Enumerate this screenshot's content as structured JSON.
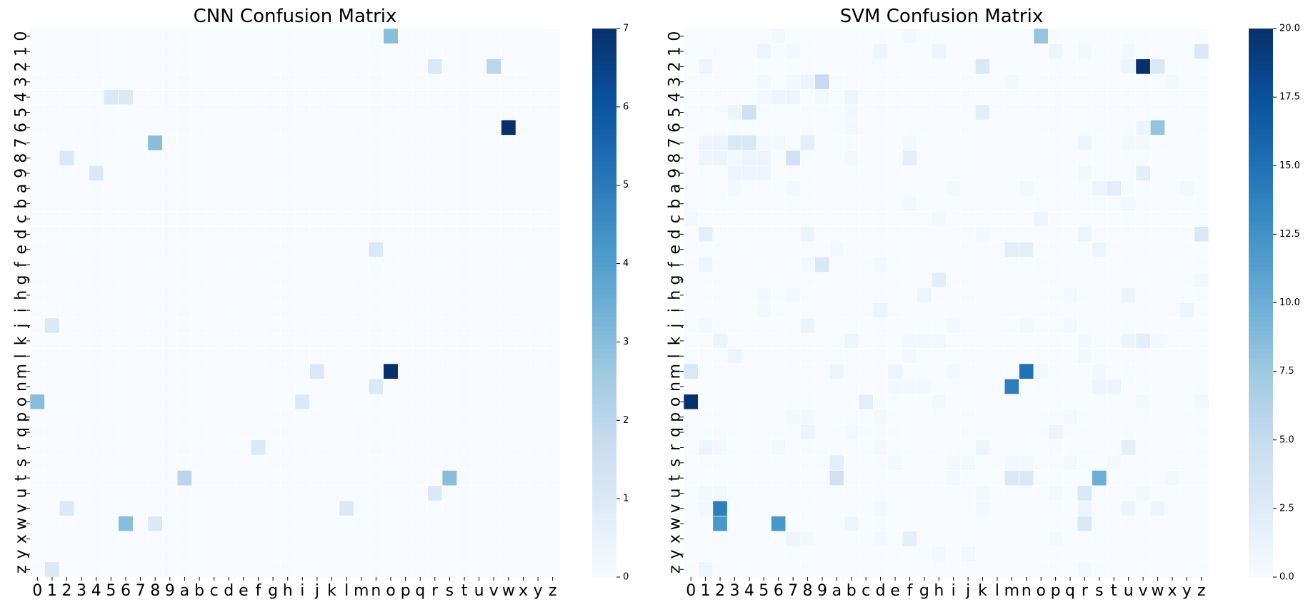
{
  "chart_data": [
    {
      "type": "heatmap",
      "title": "CNN Confusion Matrix",
      "labels": [
        "0",
        "1",
        "2",
        "3",
        "4",
        "5",
        "6",
        "7",
        "8",
        "9",
        "a",
        "b",
        "c",
        "d",
        "e",
        "f",
        "g",
        "h",
        "i",
        "j",
        "k",
        "l",
        "m",
        "n",
        "o",
        "p",
        "q",
        "r",
        "s",
        "t",
        "u",
        "v",
        "w",
        "x",
        "y",
        "z"
      ],
      "cells": [
        [
          0,
          24,
          3
        ],
        [
          2,
          27,
          1
        ],
        [
          2,
          31,
          2
        ],
        [
          4,
          5,
          1
        ],
        [
          4,
          6,
          1
        ],
        [
          6,
          32,
          7
        ],
        [
          7,
          8,
          3
        ],
        [
          8,
          2,
          1
        ],
        [
          9,
          4,
          1
        ],
        [
          14,
          23,
          1
        ],
        [
          19,
          1,
          1
        ],
        [
          22,
          19,
          1
        ],
        [
          22,
          24,
          7
        ],
        [
          23,
          23,
          1
        ],
        [
          24,
          0,
          3
        ],
        [
          24,
          18,
          1
        ],
        [
          27,
          15,
          1
        ],
        [
          29,
          10,
          2
        ],
        [
          29,
          28,
          3
        ],
        [
          30,
          27,
          1
        ],
        [
          31,
          2,
          1
        ],
        [
          31,
          21,
          1
        ],
        [
          32,
          6,
          3
        ],
        [
          32,
          8,
          1
        ],
        [
          35,
          1,
          1
        ]
      ],
      "colorbar": {
        "min": 0,
        "max": 7,
        "ticks": [
          "0",
          "1",
          "2",
          "3",
          "4",
          "5",
          "6",
          "7"
        ]
      },
      "colormap": [
        "#f7fbff",
        "#deebf7",
        "#c6dbef",
        "#9ecae1",
        "#6baed6",
        "#4292c6",
        "#2171b5",
        "#08519c",
        "#08306b"
      ]
    },
    {
      "type": "heatmap",
      "title": "SVM Confusion Matrix",
      "labels": [
        "0",
        "1",
        "2",
        "3",
        "4",
        "5",
        "6",
        "7",
        "8",
        "9",
        "a",
        "b",
        "c",
        "d",
        "e",
        "f",
        "g",
        "h",
        "i",
        "j",
        "k",
        "l",
        "m",
        "n",
        "o",
        "p",
        "q",
        "r",
        "s",
        "t",
        "u",
        "v",
        "w",
        "x",
        "y",
        "z"
      ],
      "cells": [
        [
          0,
          6,
          0.5
        ],
        [
          0,
          15,
          0.5
        ],
        [
          0,
          24,
          8
        ],
        [
          1,
          5,
          1
        ],
        [
          1,
          7,
          0.5
        ],
        [
          1,
          13,
          1
        ],
        [
          1,
          17,
          1
        ],
        [
          1,
          25,
          1
        ],
        [
          1,
          27,
          0.5
        ],
        [
          1,
          30,
          0.5
        ],
        [
          1,
          35,
          3
        ],
        [
          2,
          1,
          1
        ],
        [
          2,
          20,
          3
        ],
        [
          2,
          30,
          1
        ],
        [
          2,
          31,
          20
        ],
        [
          2,
          32,
          3
        ],
        [
          3,
          5,
          0.5
        ],
        [
          3,
          7,
          0.5
        ],
        [
          3,
          8,
          1
        ],
        [
          3,
          9,
          5
        ],
        [
          3,
          22,
          0.5
        ],
        [
          3,
          33,
          0.5
        ],
        [
          4,
          5,
          0.5
        ],
        [
          4,
          6,
          1
        ],
        [
          4,
          7,
          1
        ],
        [
          4,
          9,
          0.5
        ],
        [
          4,
          11,
          1
        ],
        [
          5,
          3,
          1
        ],
        [
          5,
          4,
          4
        ],
        [
          5,
          11,
          0.5
        ],
        [
          5,
          20,
          2
        ],
        [
          6,
          11,
          0.5
        ],
        [
          6,
          31,
          1
        ],
        [
          6,
          32,
          8
        ],
        [
          7,
          1,
          1
        ],
        [
          7,
          2,
          1
        ],
        [
          7,
          3,
          3
        ],
        [
          7,
          4,
          3
        ],
        [
          7,
          5,
          0.5
        ],
        [
          7,
          6,
          0.5
        ],
        [
          7,
          8,
          2
        ],
        [
          7,
          15,
          0.5
        ],
        [
          7,
          27,
          1
        ],
        [
          7,
          30,
          0.5
        ],
        [
          7,
          31,
          0.5
        ],
        [
          8,
          1,
          1
        ],
        [
          8,
          2,
          1
        ],
        [
          8,
          3,
          0.5
        ],
        [
          8,
          4,
          1
        ],
        [
          8,
          5,
          1
        ],
        [
          8,
          7,
          4
        ],
        [
          8,
          11,
          0.5
        ],
        [
          8,
          15,
          2
        ],
        [
          9,
          3,
          1
        ],
        [
          9,
          4,
          1
        ],
        [
          9,
          5,
          1
        ],
        [
          9,
          27,
          0.5
        ],
        [
          9,
          31,
          2
        ],
        [
          10,
          3,
          0.5
        ],
        [
          10,
          7,
          0.5
        ],
        [
          10,
          18,
          0.5
        ],
        [
          10,
          23,
          0.5
        ],
        [
          10,
          28,
          1
        ],
        [
          10,
          29,
          2
        ],
        [
          10,
          34,
          0.5
        ],
        [
          11,
          15,
          0.5
        ],
        [
          11,
          30,
          0.5
        ],
        [
          12,
          0,
          0.5
        ],
        [
          12,
          17,
          0.5
        ],
        [
          12,
          24,
          1
        ],
        [
          13,
          1,
          2
        ],
        [
          13,
          8,
          1
        ],
        [
          13,
          20,
          0.5
        ],
        [
          13,
          27,
          1
        ],
        [
          13,
          35,
          3
        ],
        [
          14,
          10,
          0.5
        ],
        [
          14,
          22,
          2
        ],
        [
          14,
          23,
          2
        ],
        [
          14,
          28,
          1
        ],
        [
          15,
          1,
          1
        ],
        [
          15,
          8,
          0.5
        ],
        [
          15,
          9,
          3
        ],
        [
          15,
          13,
          0.5
        ],
        [
          16,
          17,
          2
        ],
        [
          16,
          35,
          0.5
        ],
        [
          17,
          5,
          0.5
        ],
        [
          17,
          7,
          0.5
        ],
        [
          17,
          16,
          1
        ],
        [
          17,
          26,
          0.5
        ],
        [
          17,
          30,
          1
        ],
        [
          18,
          5,
          0.5
        ],
        [
          18,
          13,
          1
        ],
        [
          18,
          34,
          1
        ],
        [
          19,
          1,
          0.5
        ],
        [
          19,
          8,
          1
        ],
        [
          19,
          18,
          0.5
        ],
        [
          19,
          23,
          0.5
        ],
        [
          19,
          26,
          0.5
        ],
        [
          20,
          2,
          1
        ],
        [
          20,
          11,
          1
        ],
        [
          20,
          15,
          0.5
        ],
        [
          20,
          16,
          0.5
        ],
        [
          20,
          17,
          0.5
        ],
        [
          20,
          27,
          0.5
        ],
        [
          20,
          30,
          1
        ],
        [
          20,
          31,
          2
        ],
        [
          20,
          32,
          0.5
        ],
        [
          21,
          3,
          1
        ],
        [
          21,
          15,
          0.5
        ],
        [
          21,
          27,
          0.5
        ],
        [
          22,
          0,
          3
        ],
        [
          22,
          10,
          1
        ],
        [
          22,
          14,
          1
        ],
        [
          22,
          18,
          0.5
        ],
        [
          22,
          23,
          15
        ],
        [
          22,
          24,
          0.5
        ],
        [
          22,
          28,
          0.5
        ],
        [
          23,
          14,
          0.5
        ],
        [
          23,
          15,
          0.5
        ],
        [
          23,
          16,
          0.5
        ],
        [
          23,
          22,
          14
        ],
        [
          23,
          28,
          1
        ],
        [
          23,
          29,
          1
        ],
        [
          24,
          0,
          20
        ],
        [
          24,
          12,
          2
        ],
        [
          24,
          17,
          0.5
        ],
        [
          24,
          31,
          0.5
        ],
        [
          24,
          35,
          0.5
        ],
        [
          25,
          7,
          0.5
        ],
        [
          25,
          8,
          0.5
        ],
        [
          25,
          13,
          0.5
        ],
        [
          25,
          26,
          0.5
        ],
        [
          26,
          8,
          1
        ],
        [
          26,
          11,
          0.5
        ],
        [
          26,
          25,
          1
        ],
        [
          27,
          1,
          1
        ],
        [
          27,
          2,
          0.5
        ],
        [
          27,
          6,
          0.5
        ],
        [
          27,
          13,
          0.5
        ],
        [
          27,
          20,
          1
        ],
        [
          27,
          30,
          2
        ],
        [
          28,
          10,
          2
        ],
        [
          28,
          14,
          0.5
        ],
        [
          28,
          18,
          0.5
        ],
        [
          28,
          19,
          0.5
        ],
        [
          28,
          22,
          0.5
        ],
        [
          28,
          23,
          0.5
        ],
        [
          28,
          26,
          0.5
        ],
        [
          28,
          29,
          0.5
        ],
        [
          29,
          10,
          4
        ],
        [
          29,
          18,
          0.5
        ],
        [
          29,
          22,
          3
        ],
        [
          29,
          23,
          3
        ],
        [
          29,
          28,
          10
        ],
        [
          29,
          33,
          0.5
        ],
        [
          30,
          1,
          0.5
        ],
        [
          30,
          2,
          0.5
        ],
        [
          30,
          20,
          0.5
        ],
        [
          30,
          25,
          0.5
        ],
        [
          30,
          27,
          3
        ],
        [
          30,
          31,
          0.5
        ],
        [
          31,
          1,
          0.5
        ],
        [
          31,
          2,
          14
        ],
        [
          31,
          13,
          0.5
        ],
        [
          31,
          20,
          0.5
        ],
        [
          31,
          27,
          1
        ],
        [
          31,
          30,
          1
        ],
        [
          31,
          32,
          1
        ],
        [
          32,
          2,
          12
        ],
        [
          32,
          6,
          12
        ],
        [
          32,
          11,
          1
        ],
        [
          32,
          27,
          3
        ],
        [
          33,
          7,
          1
        ],
        [
          33,
          8,
          0.5
        ],
        [
          33,
          13,
          0.5
        ],
        [
          33,
          15,
          2
        ],
        [
          33,
          25,
          0.5
        ],
        [
          34,
          17,
          0.5
        ],
        [
          34,
          19,
          0.5
        ],
        [
          35,
          1,
          1
        ],
        [
          35,
          27,
          0.5
        ]
      ],
      "colorbar": {
        "min": 0,
        "max": 20,
        "ticks": [
          "0.0",
          "2.5",
          "5.0",
          "7.5",
          "10.0",
          "12.5",
          "15.0",
          "17.5",
          "20.0"
        ]
      },
      "colormap": [
        "#f7fbff",
        "#deebf7",
        "#c6dbef",
        "#9ecae1",
        "#6baed6",
        "#4292c6",
        "#2171b5",
        "#08519c",
        "#08306b"
      ]
    }
  ]
}
